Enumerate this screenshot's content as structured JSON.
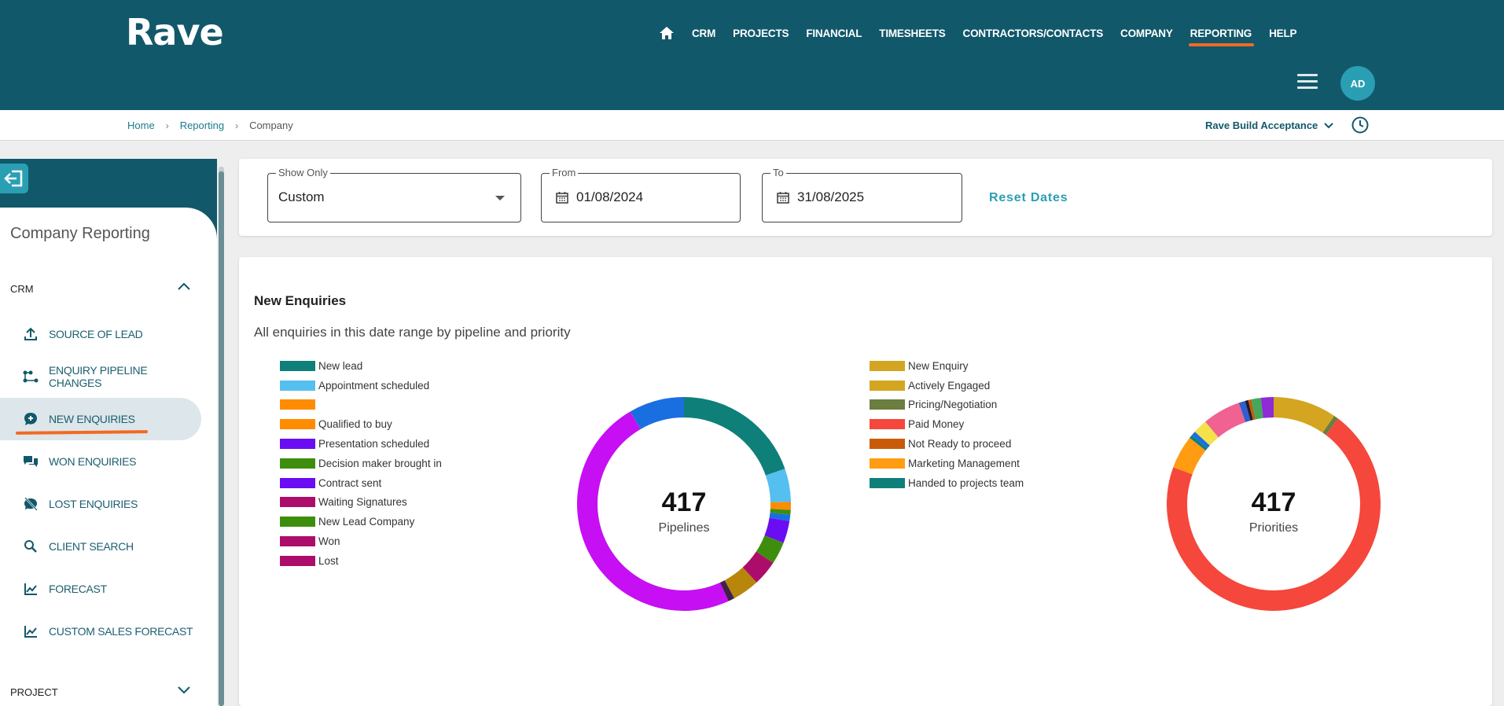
{
  "app": {
    "logo": "Rave"
  },
  "nav": {
    "items": [
      {
        "label": "CRM"
      },
      {
        "label": "PROJECTS"
      },
      {
        "label": "FINANCIAL"
      },
      {
        "label": "TIMESHEETS"
      },
      {
        "label": "CONTRACTORS/CONTACTS"
      },
      {
        "label": "COMPANY"
      },
      {
        "label": "REPORTING",
        "active": true
      },
      {
        "label": "HELP"
      }
    ],
    "avatar_initials": "AD"
  },
  "breadcrumb": {
    "home": "Home",
    "reporting": "Reporting",
    "current": "Company"
  },
  "environment": {
    "label": "Rave Build Acceptance"
  },
  "sidebar": {
    "title": "Company Reporting",
    "crm_section": "CRM",
    "project_section": "PROJECT",
    "items": [
      {
        "label": "SOURCE OF LEAD",
        "icon": "upload-icon"
      },
      {
        "label": "ENQUIRY PIPELINE CHANGES",
        "icon": "pipeline-icon"
      },
      {
        "label": "NEW ENQUIRIES",
        "icon": "chat-plus-icon",
        "active": true
      },
      {
        "label": "WON ENQUIRIES",
        "icon": "chat-bubbles-icon"
      },
      {
        "label": "LOST ENQUIRIES",
        "icon": "chat-off-icon"
      },
      {
        "label": "CLIENT SEARCH",
        "icon": "search-icon"
      },
      {
        "label": "FORECAST",
        "icon": "line-chart-icon"
      },
      {
        "label": "CUSTOM SALES FORECAST",
        "icon": "line-chart-icon"
      }
    ]
  },
  "filters": {
    "show_only_label": "Show Only",
    "show_only_value": "Custom",
    "from_label": "From",
    "from_value": "01/08/2024",
    "to_label": "To",
    "to_value": "31/08/2025",
    "reset_label": "Reset Dates"
  },
  "chart_section": {
    "title": "New Enquiries",
    "subtitle": "All enquiries in this date range by pipeline and priority"
  },
  "chart_data": [
    {
      "type": "pie",
      "center_value": "417",
      "center_label": "Pipelines",
      "legend": [
        {
          "name": "New lead",
          "color": "#0f7f7a"
        },
        {
          "name": "Appointment scheduled",
          "color": "#55bff0"
        },
        {
          "name": "",
          "color": "#ff8c00"
        },
        {
          "name": "Qualified to buy",
          "color": "#ff8c00"
        },
        {
          "name": "Presentation scheduled",
          "color": "#6a0df2"
        },
        {
          "name": "Decision maker brought in",
          "color": "#3e8e0e"
        },
        {
          "name": "Contract sent",
          "color": "#6a0df2"
        },
        {
          "name": "Waiting Signatures",
          "color": "#ad0d6a"
        },
        {
          "name": "New Lead Company",
          "color": "#3e8e0e"
        },
        {
          "name": "Won",
          "color": "#ad0d6a"
        },
        {
          "name": "Lost",
          "color": "#ad0d6a"
        }
      ],
      "segments": [
        {
          "value": 82,
          "color": "#0f7f7a"
        },
        {
          "value": 21,
          "color": "#55bff0"
        },
        {
          "value": 5,
          "color": "#ff8c00"
        },
        {
          "value": 3,
          "color": "#3e8e0e"
        },
        {
          "value": 4,
          "color": "#1a6fe0"
        },
        {
          "value": 14,
          "color": "#6a0df2"
        },
        {
          "value": 14,
          "color": "#3e8e0e"
        },
        {
          "value": 16,
          "color": "#ad0d6a"
        },
        {
          "value": 17,
          "color": "#b8860b"
        },
        {
          "value": 4,
          "color": "#40204a"
        },
        {
          "value": 202,
          "color": "#c60ff2"
        },
        {
          "value": 35,
          "color": "#1a6fe0"
        }
      ]
    },
    {
      "type": "pie",
      "center_value": "417",
      "center_label": "Priorities",
      "legend": [
        {
          "name": "New Enquiry",
          "color": "#d4a520"
        },
        {
          "name": "Actively Engaged",
          "color": "#d4a520"
        },
        {
          "name": "Pricing/Negotiation",
          "color": "#6b7d3f"
        },
        {
          "name": "Paid Money",
          "color": "#f5473c"
        },
        {
          "name": "Not Ready to proceed",
          "color": "#c95a08"
        },
        {
          "name": "Marketing Management",
          "color": "#ff9c12"
        },
        {
          "name": "Handed to projects team",
          "color": "#0f7f7a"
        }
      ],
      "segments": [
        {
          "value": 40,
          "color": "#d4a520"
        },
        {
          "value": 3,
          "color": "#6b7d3f"
        },
        {
          "value": 293,
          "color": "#f5473c"
        },
        {
          "value": 21,
          "color": "#ff9c12"
        },
        {
          "value": 2,
          "color": "#0f7f7a"
        },
        {
          "value": 3,
          "color": "#1a6fe0"
        },
        {
          "value": 9,
          "color": "#f5e14a"
        },
        {
          "value": 24,
          "color": "#f06291"
        },
        {
          "value": 4,
          "color": "#2e5fd0"
        },
        {
          "value": 2,
          "color": "#1d1d2e"
        },
        {
          "value": 2,
          "color": "#c95a08"
        },
        {
          "value": 6,
          "color": "#43a85a"
        },
        {
          "value": 8,
          "color": "#8f2ad6"
        }
      ]
    }
  ]
}
